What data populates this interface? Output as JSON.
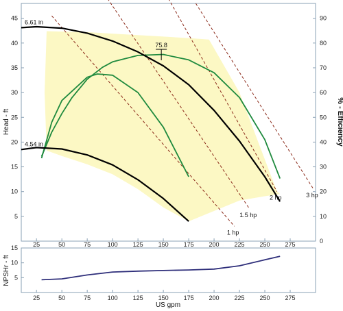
{
  "chart_data": [
    {
      "type": "line",
      "subtype": "pump-performance-curve",
      "xlabel": "",
      "ylabel": "Head - ft",
      "y2label": "% - Efficiency",
      "xlim": [
        10,
        300
      ],
      "ylim": [
        0,
        48
      ],
      "y2lim": [
        0,
        96
      ],
      "xticks": [
        25,
        50,
        75,
        100,
        125,
        150,
        175,
        200,
        225,
        250,
        275
      ],
      "yticks": [
        5,
        10,
        15,
        20,
        25,
        30,
        35,
        40,
        45
      ],
      "y2ticks": [
        0,
        10,
        20,
        30,
        40,
        50,
        60,
        70,
        80,
        90
      ],
      "grid": false,
      "operating_region": {
        "color": "#fcf8c4",
        "x": [
          35,
          55,
          75,
          100,
          125,
          150,
          175,
          195,
          225,
          262,
          265,
          248,
          225,
          175,
          150,
          125,
          100,
          75,
          50,
          35,
          33
        ],
        "y": [
          42.4,
          42.3,
          42.2,
          41.9,
          41.6,
          41.3,
          41.0,
          40.7,
          30.0,
          10.0,
          9.5,
          9.0,
          8.2,
          4.0,
          6.8,
          10.5,
          13.5,
          15.5,
          17.2,
          18.3,
          30.0
        ]
      },
      "head_curves": [
        {
          "label": "6.61 in",
          "color": "#000000",
          "x": [
            10,
            25,
            50,
            75,
            100,
            125,
            150,
            175,
            200,
            225,
            250,
            265
          ],
          "y": [
            43.1,
            43.3,
            43.0,
            42.0,
            40.4,
            38.2,
            35.4,
            31.6,
            26.4,
            20.2,
            13.0,
            8.0
          ]
        },
        {
          "label": "4.54 in",
          "color": "#000000",
          "x": [
            10,
            25,
            50,
            75,
            100,
            125,
            150,
            175
          ],
          "y": [
            18.5,
            18.9,
            18.6,
            17.4,
            15.4,
            12.4,
            8.6,
            4.0
          ]
        }
      ],
      "efficiency_curves": [
        {
          "color": "#1f8a3e",
          "x": [
            30,
            40,
            50,
            60,
            75,
            90,
            100,
            125,
            150,
            175,
            200,
            225,
            250,
            265
          ],
          "y": [
            34.2,
            44.0,
            51.5,
            58.0,
            65.4,
            70.2,
            72.4,
            75.0,
            75.4,
            73.2,
            68.0,
            58.0,
            41.0,
            25.3
          ]
        },
        {
          "color": "#1f8a3e",
          "x": [
            30,
            40,
            50,
            75,
            85,
            100,
            125,
            150,
            175
          ],
          "y": [
            33.5,
            48.0,
            56.8,
            66.2,
            67.5,
            67.0,
            60.0,
            46.0,
            26.0
          ]
        }
      ],
      "efficiency_peak": {
        "label": "75.8",
        "x": 148,
        "head": 37.9
      },
      "power_lines": [
        {
          "label": "1 hp",
          "color": "#8b2a1a",
          "x": [
            40,
            220
          ],
          "y": [
            45.5,
            3.0
          ]
        },
        {
          "label": "1.5 hp",
          "color": "#8b2a1a",
          "x": [
            95,
            235
          ],
          "y": [
            49.0,
            6.5
          ]
        },
        {
          "label": "2 hp",
          "color": "#8b2a1a",
          "x": [
            155,
            262
          ],
          "y": [
            49.0,
            10.0
          ]
        },
        {
          "label": "3 hp",
          "color": "#8b2a1a",
          "x": [
            182,
            298
          ],
          "y": [
            48.0,
            10.5
          ]
        }
      ]
    },
    {
      "type": "line",
      "subtype": "npshr",
      "xlabel": "US gpm",
      "ylabel": "NPSHr - ft",
      "xlim": [
        10,
        300
      ],
      "ylim": [
        0,
        15
      ],
      "xticks": [
        25,
        50,
        75,
        100,
        125,
        150,
        175,
        200,
        225,
        250,
        275
      ],
      "yticks": [
        5,
        10,
        15
      ],
      "grid": false,
      "series": [
        {
          "color": "#2e2e7a",
          "x": [
            30,
            50,
            75,
            100,
            125,
            150,
            175,
            200,
            225,
            250,
            265
          ],
          "y": [
            4.3,
            4.6,
            5.9,
            6.9,
            7.2,
            7.4,
            7.6,
            7.9,
            9.0,
            11.0,
            12.2
          ]
        }
      ]
    }
  ]
}
